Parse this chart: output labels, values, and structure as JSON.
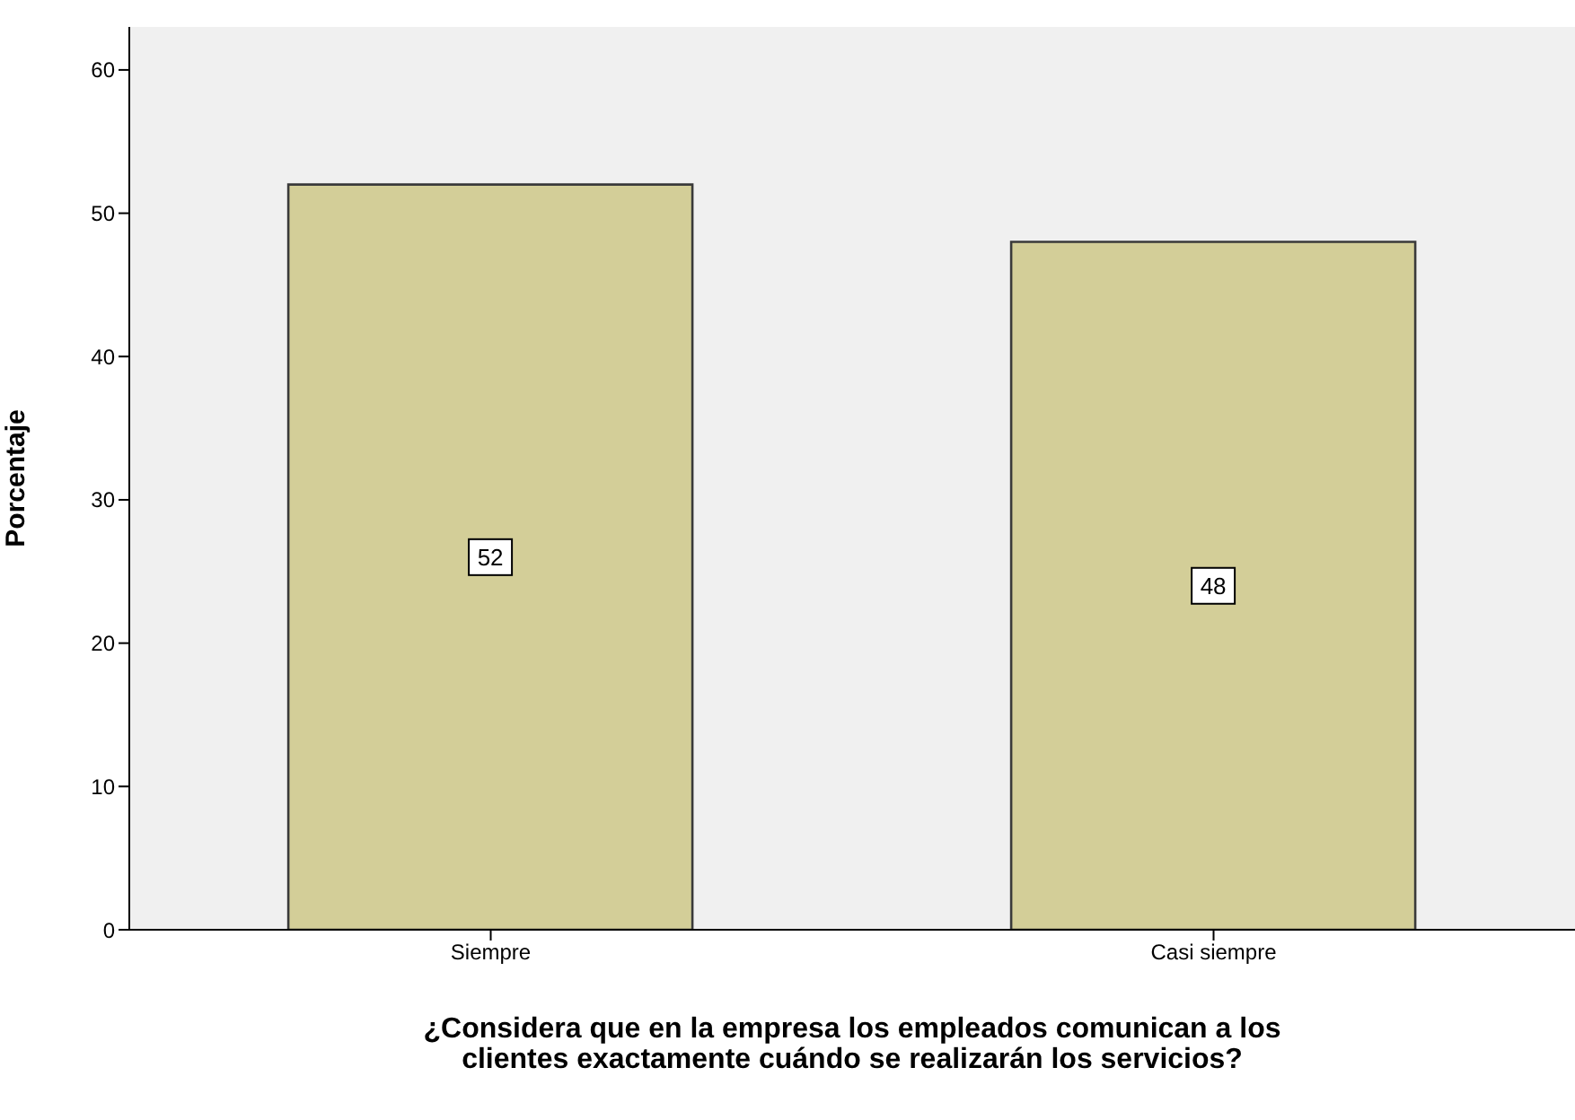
{
  "chart_data": {
    "type": "bar",
    "categories": [
      "Siempre",
      "Casi siempre"
    ],
    "values": [
      52,
      48
    ],
    "color": "#d3ce98",
    "ylim": [
      0,
      63
    ],
    "yticks": [
      0,
      10,
      20,
      30,
      40,
      50,
      60
    ],
    "ylabel": "Porcentaje",
    "xlabel": "¿Considera que en la empresa los empleados comunican a los clientes exactamente cuándo se realizarán los servicios?",
    "data_labels": true,
    "grid": false,
    "legend": false
  }
}
